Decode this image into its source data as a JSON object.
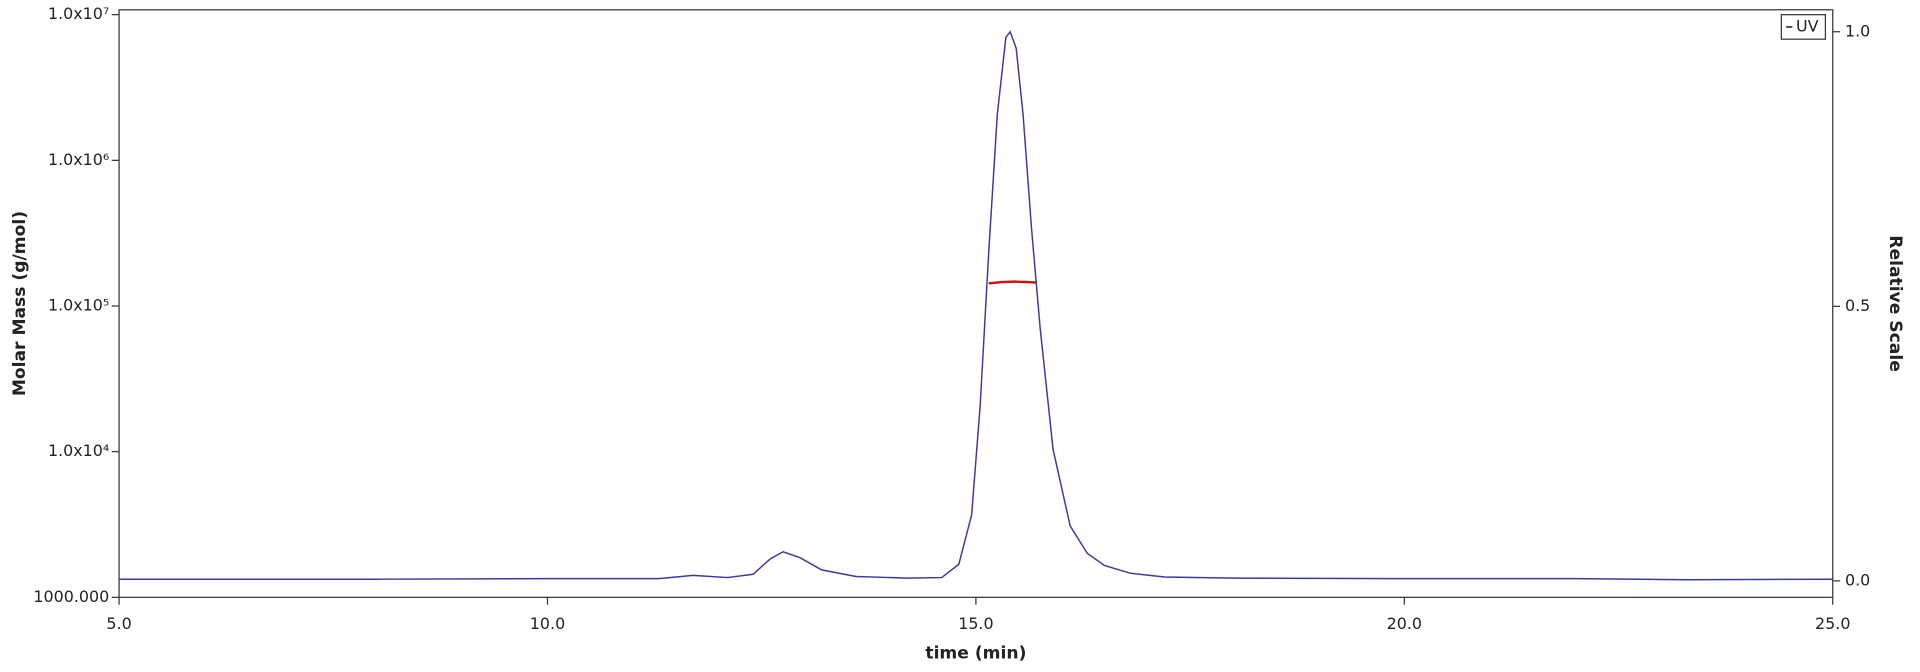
{
  "chart_data": {
    "type": "line",
    "xlabel": "time (min)",
    "ylabel": "Molar Mass (g/mol)",
    "y2label": "Relative Scale",
    "xlim": [
      5,
      25
    ],
    "xticks": [
      {
        "value": 5,
        "label": "5.0"
      },
      {
        "value": 10,
        "label": "10.0"
      },
      {
        "value": 15,
        "label": "15.0"
      },
      {
        "value": 20,
        "label": "20.0"
      },
      {
        "value": 25,
        "label": "25.0"
      }
    ],
    "ylim": [
      1000,
      10800000
    ],
    "yscale": "log",
    "yticks": [
      {
        "value": 1000,
        "label": "1000.000"
      },
      {
        "value": 10000,
        "label": "1.0x10⁴"
      },
      {
        "value": 100000,
        "label": "1.0x10⁵"
      },
      {
        "value": 1000000,
        "label": "1.0x10⁶"
      },
      {
        "value": 10000000,
        "label": "1.0x10⁷"
      }
    ],
    "y2lim": [
      -0.03,
      1.04
    ],
    "y2ticks": [
      {
        "value": 0,
        "label": "0.0"
      },
      {
        "value": 0.5,
        "label": "0.5"
      },
      {
        "value": 1,
        "label": "1.0"
      }
    ],
    "legend": "top-right",
    "series": [
      {
        "name": "UV",
        "color": "#3a3aa0",
        "axis": "y2",
        "x": [
          5.0,
          8.0,
          10.0,
          11.3,
          11.7,
          12.1,
          12.4,
          12.6,
          12.75,
          12.95,
          13.2,
          13.6,
          14.2,
          14.6,
          14.8,
          14.95,
          15.05,
          15.15,
          15.25,
          15.35,
          15.4,
          15.47,
          15.55,
          15.65,
          15.75,
          15.9,
          16.1,
          16.3,
          16.5,
          16.8,
          17.2,
          18,
          20,
          22,
          23.3,
          25
        ],
        "values": [
          0.003,
          0.003,
          0.004,
          0.004,
          0.01,
          0.006,
          0.012,
          0.04,
          0.053,
          0.042,
          0.02,
          0.008,
          0.005,
          0.006,
          0.03,
          0.12,
          0.32,
          0.6,
          0.85,
          0.99,
          1.0,
          0.97,
          0.85,
          0.64,
          0.46,
          0.24,
          0.1,
          0.05,
          0.028,
          0.014,
          0.007,
          0.005,
          0.004,
          0.004,
          0.002,
          0.003
        ]
      },
      {
        "color": "#d01010",
        "x": [
          15.15,
          15.3,
          15.45,
          15.6,
          15.7
        ],
        "values": [
          143000,
          146000,
          147000,
          146000,
          145000
        ]
      }
    ]
  }
}
